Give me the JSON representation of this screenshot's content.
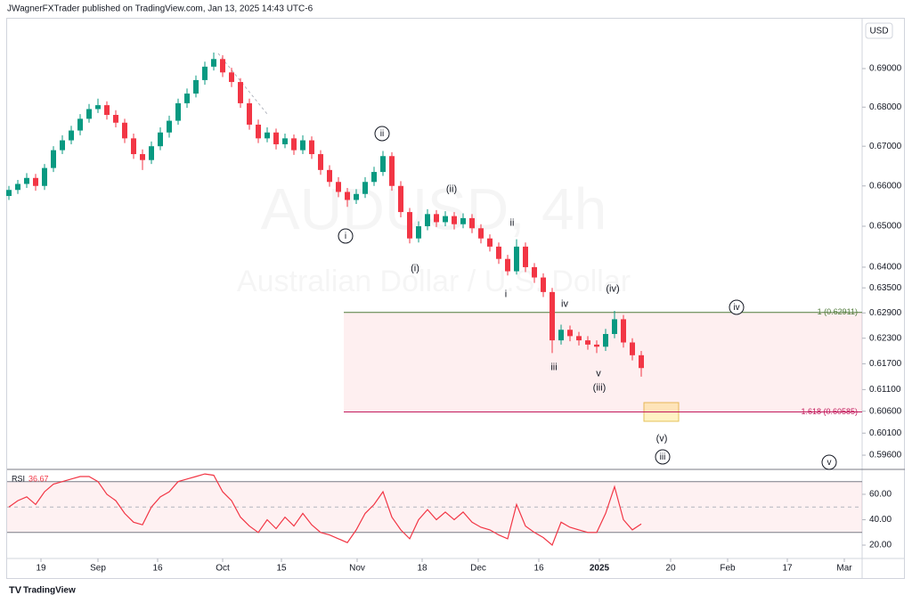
{
  "header": {
    "text": "JWagnerFXTrader published on TradingView.com, Jan 13, 2025 14:43 UTC-6"
  },
  "footer": {
    "brand": "TradingView"
  },
  "chart_data": [
    {
      "type": "candlestick",
      "currency": "USD",
      "watermark_symbol": "AUDUSD, 4h",
      "watermark_name": "Australian Dollar / U.S. Dollar",
      "up_color": "#089981",
      "down_color": "#f23645",
      "log_scale": true,
      "open": [
        0.6575,
        0.659,
        0.6605,
        0.662,
        0.66,
        0.6645,
        0.669,
        0.6715,
        0.674,
        0.677,
        0.6795,
        0.6805,
        0.678,
        0.676,
        0.672,
        0.668,
        0.6665,
        0.67,
        0.6735,
        0.6765,
        0.681,
        0.6835,
        0.687,
        0.6905,
        0.6925,
        0.689,
        0.6865,
        0.681,
        0.6755,
        0.672,
        0.6735,
        0.6705,
        0.672,
        0.669,
        0.6715,
        0.668,
        0.664,
        0.661,
        0.6585,
        0.6565,
        0.658,
        0.661,
        0.6635,
        0.6675,
        0.66,
        0.6535,
        0.647,
        0.65,
        0.653,
        0.651,
        0.6525,
        0.6505,
        0.652,
        0.6495,
        0.647,
        0.645,
        0.642,
        0.639,
        0.645,
        0.64,
        0.6375,
        0.634,
        0.6225,
        0.625,
        0.6235,
        0.6225,
        0.6215,
        0.621,
        0.624,
        0.6275,
        0.622,
        0.619
      ],
      "high": [
        0.66,
        0.6615,
        0.6632,
        0.663,
        0.6655,
        0.67,
        0.6728,
        0.6752,
        0.6782,
        0.6808,
        0.6822,
        0.6815,
        0.6792,
        0.677,
        0.6732,
        0.6692,
        0.6712,
        0.6748,
        0.6778,
        0.6822,
        0.6848,
        0.6882,
        0.6918,
        0.6942,
        0.6935,
        0.6902,
        0.6875,
        0.6822,
        0.6768,
        0.6748,
        0.6745,
        0.6732,
        0.673,
        0.6728,
        0.6725,
        0.669,
        0.6652,
        0.6622,
        0.6595,
        0.6592,
        0.6622,
        0.6648,
        0.6688,
        0.6685,
        0.6612,
        0.6545,
        0.6512,
        0.6542,
        0.654,
        0.6537,
        0.6535,
        0.6532,
        0.653,
        0.6505,
        0.648,
        0.646,
        0.643,
        0.6468,
        0.646,
        0.641,
        0.6385,
        0.635,
        0.6262,
        0.626,
        0.6245,
        0.6235,
        0.6225,
        0.6252,
        0.6295,
        0.6285,
        0.623,
        0.62
      ],
      "low": [
        0.6565,
        0.658,
        0.6595,
        0.6588,
        0.659,
        0.6635,
        0.668,
        0.6705,
        0.6728,
        0.676,
        0.6785,
        0.6768,
        0.6748,
        0.6708,
        0.6668,
        0.664,
        0.6655,
        0.669,
        0.6722,
        0.6755,
        0.6798,
        0.6825,
        0.6858,
        0.6895,
        0.6878,
        0.6852,
        0.6798,
        0.6742,
        0.6708,
        0.671,
        0.6692,
        0.6695,
        0.6678,
        0.668,
        0.6668,
        0.6628,
        0.6598,
        0.6572,
        0.6548,
        0.6555,
        0.657,
        0.66,
        0.6625,
        0.6588,
        0.6522,
        0.6458,
        0.646,
        0.649,
        0.6498,
        0.65,
        0.6492,
        0.6495,
        0.6483,
        0.6458,
        0.6438,
        0.6408,
        0.638,
        0.6382,
        0.6388,
        0.6362,
        0.6328,
        0.6195,
        0.6215,
        0.6223,
        0.6213,
        0.6203,
        0.6195,
        0.62,
        0.623,
        0.6208,
        0.6178,
        0.614
      ],
      "close": [
        0.659,
        0.6605,
        0.662,
        0.66,
        0.6645,
        0.669,
        0.6715,
        0.674,
        0.677,
        0.6795,
        0.6805,
        0.678,
        0.676,
        0.672,
        0.668,
        0.6665,
        0.67,
        0.6735,
        0.6765,
        0.681,
        0.6835,
        0.687,
        0.6905,
        0.6925,
        0.689,
        0.6865,
        0.681,
        0.6755,
        0.672,
        0.6735,
        0.6705,
        0.672,
        0.669,
        0.6715,
        0.668,
        0.664,
        0.661,
        0.6585,
        0.6565,
        0.658,
        0.661,
        0.6635,
        0.6675,
        0.66,
        0.6535,
        0.647,
        0.65,
        0.653,
        0.651,
        0.6525,
        0.6505,
        0.652,
        0.6495,
        0.647,
        0.645,
        0.642,
        0.639,
        0.645,
        0.64,
        0.6375,
        0.634,
        0.6225,
        0.625,
        0.6235,
        0.6225,
        0.6215,
        0.621,
        0.624,
        0.6275,
        0.622,
        0.619,
        0.616
      ],
      "ylim": [
        0.5928,
        0.7034
      ],
      "yticks": [
        {
          "value": 0.69,
          "label": "0.69000"
        },
        {
          "value": 0.68,
          "label": "0.68000"
        },
        {
          "value": 0.67,
          "label": "0.67000"
        },
        {
          "value": 0.66,
          "label": "0.66000"
        },
        {
          "value": 0.65,
          "label": "0.65000"
        },
        {
          "value": 0.64,
          "label": "0.64000"
        },
        {
          "value": 0.635,
          "label": "0.63500"
        },
        {
          "value": 0.629,
          "label": "0.62900"
        },
        {
          "value": 0.623,
          "label": "0.62300"
        },
        {
          "value": 0.617,
          "label": "0.61700"
        },
        {
          "value": 0.611,
          "label": "0.61100"
        },
        {
          "value": 0.606,
          "label": "0.60600"
        },
        {
          "value": 0.601,
          "label": "0.60100"
        },
        {
          "value": 0.596,
          "label": "0.59600"
        }
      ],
      "xlim": [
        -0.2,
        95.8
      ],
      "xticks": [
        {
          "value": 3.6,
          "label": "19"
        },
        {
          "value": 10.0,
          "label": "Sep"
        },
        {
          "value": 16.7,
          "label": "16"
        },
        {
          "value": 24.0,
          "label": "Oct"
        },
        {
          "value": 30.6,
          "label": "15"
        },
        {
          "value": 39.1,
          "label": "Nov"
        },
        {
          "value": 46.4,
          "label": "18"
        },
        {
          "value": 52.7,
          "label": "Dec"
        },
        {
          "value": 59.5,
          "label": "16"
        },
        {
          "value": 66.3,
          "label": "2025"
        },
        {
          "value": 74.3,
          "label": "20"
        },
        {
          "value": 80.7,
          "label": "Feb"
        },
        {
          "value": 87.4,
          "label": "17"
        },
        {
          "value": 93.8,
          "label": "Mar"
        }
      ],
      "fib_levels": [
        {
          "value": 0.62911,
          "label": "1 (0.62911)",
          "color": "#4f7a3a"
        },
        {
          "value": 0.60585,
          "label": "1.618 (0.60585)",
          "color": "#c2185b"
        }
      ],
      "annotations": [
        {
          "text": "ii",
          "circled": true
        },
        {
          "text": "i",
          "circled": true
        },
        {
          "text": "(ii)",
          "circled": false
        },
        {
          "text": "(i)",
          "circled": false
        },
        {
          "text": "ii",
          "circled": false
        },
        {
          "text": "i",
          "circled": false
        },
        {
          "text": "iv",
          "circled": false
        },
        {
          "text": "(iv)",
          "circled": false
        },
        {
          "text": "iii",
          "circled": false
        },
        {
          "text": "v",
          "circled": false
        },
        {
          "text": "(iii)",
          "circled": false
        },
        {
          "text": "iv",
          "circled": true
        },
        {
          "text": "(v)",
          "circled": false
        },
        {
          "text": "iii",
          "circled": true
        },
        {
          "text": "v",
          "circled": true
        }
      ]
    },
    {
      "type": "line",
      "series": [
        {
          "name": "RSI",
          "color": "#f23645",
          "values": [
            50,
            55,
            58,
            52,
            62,
            68,
            70,
            72,
            74,
            74,
            70,
            60,
            55,
            45,
            38,
            36,
            50,
            58,
            62,
            70,
            72,
            74,
            76,
            75,
            62,
            55,
            42,
            35,
            30,
            40,
            33,
            42,
            35,
            45,
            36,
            30,
            28,
            25,
            22,
            32,
            45,
            52,
            62,
            42,
            32,
            25,
            40,
            48,
            40,
            46,
            40,
            46,
            38,
            34,
            32,
            28,
            25,
            52,
            35,
            30,
            26,
            20,
            38,
            34,
            32,
            30,
            30,
            45,
            66,
            40,
            32,
            36.67
          ]
        }
      ],
      "ylim": [
        10.9,
        79.6
      ],
      "yticks": [
        {
          "value": 60,
          "label": "60.00"
        },
        {
          "value": 40,
          "label": "40.00"
        },
        {
          "value": 20,
          "label": "20.00"
        }
      ],
      "band": [
        30,
        70
      ],
      "midline": 50
    }
  ]
}
